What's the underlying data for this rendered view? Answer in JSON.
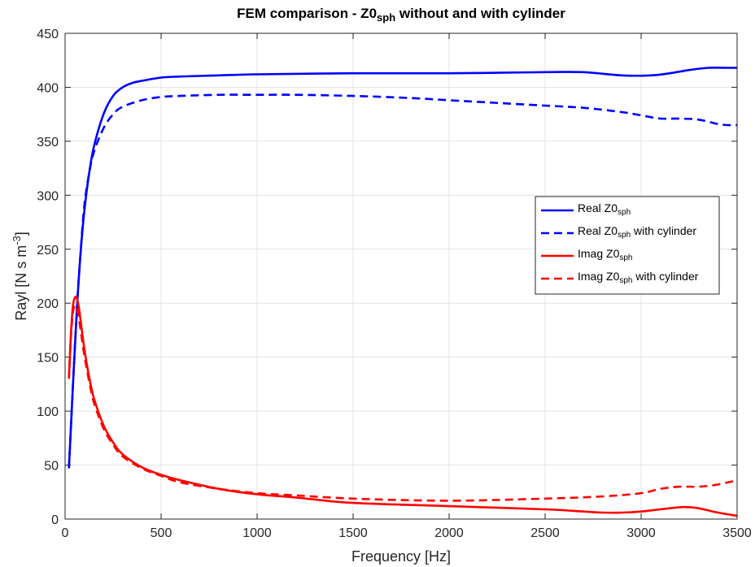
{
  "chart_data": {
    "type": "line",
    "title": {
      "prefix": "FEM comparison - Z0",
      "sub": "sph",
      "suffix": " without and with cylinder"
    },
    "xlabel": "Frequency [Hz]",
    "ylabel": {
      "prefix": "Rayl [N s m",
      "sup": "-3",
      "suffix": "]"
    },
    "xlim": [
      0,
      3500
    ],
    "ylim": [
      0,
      450
    ],
    "xticks": [
      0,
      500,
      1000,
      1500,
      2000,
      2500,
      3000,
      3500
    ],
    "yticks": [
      0,
      50,
      100,
      150,
      200,
      250,
      300,
      350,
      400,
      450
    ],
    "grid": true,
    "legend_position": "center-right",
    "series": [
      {
        "name": {
          "prefix": "Real Z0",
          "sub": "sph",
          "suffix": ""
        },
        "color": "#0000ff",
        "style": "solid",
        "x": [
          20,
          40,
          60,
          80,
          100,
          125,
          150,
          200,
          250,
          300,
          350,
          400,
          500,
          600,
          800,
          1000,
          1500,
          2000,
          2500,
          2700,
          2900,
          3050,
          3150,
          3250,
          3350,
          3450,
          3500
        ],
        "y": [
          47,
          120,
          190,
          245,
          285,
          320,
          345,
          375,
          392,
          400,
          404,
          406,
          409,
          410,
          411,
          412,
          413,
          413,
          414,
          414,
          411,
          411,
          413,
          416,
          418,
          418,
          418
        ]
      },
      {
        "name": {
          "prefix": "Real Z0",
          "sub": "sph",
          "suffix": " with cylinder"
        },
        "color": "#0000ff",
        "style": "dashed",
        "x": [
          20,
          40,
          60,
          80,
          100,
          125,
          150,
          200,
          250,
          300,
          400,
          500,
          600,
          800,
          1000,
          1200,
          1500,
          1800,
          2000,
          2200,
          2500,
          2700,
          2900,
          3000,
          3100,
          3200,
          3300,
          3400,
          3450,
          3500
        ],
        "y": [
          47,
          120,
          190,
          245,
          290,
          320,
          340,
          362,
          375,
          382,
          388,
          391,
          392,
          393,
          393,
          393,
          392,
          390,
          388,
          386,
          383,
          381,
          377,
          374,
          371,
          371,
          370,
          366,
          365,
          365
        ]
      },
      {
        "name": {
          "prefix": "Imag Z0",
          "sub": "sph",
          "suffix": ""
        },
        "color": "#ff0000",
        "style": "solid",
        "x": [
          20,
          30,
          40,
          50,
          60,
          70,
          80,
          100,
          125,
          150,
          200,
          250,
          300,
          400,
          500,
          600,
          800,
          1000,
          1200,
          1500,
          2000,
          2500,
          2700,
          2800,
          2900,
          3000,
          3100,
          3200,
          3250,
          3300,
          3400,
          3500
        ],
        "y": [
          130,
          170,
          196,
          205,
          205,
          198,
          185,
          158,
          132,
          112,
          87,
          71,
          60,
          48,
          41,
          36,
          28,
          23,
          20,
          15,
          12,
          9,
          7,
          6,
          6,
          7,
          9,
          11,
          11,
          10,
          6,
          3
        ]
      },
      {
        "name": {
          "prefix": "Imag Z0",
          "sub": "sph",
          "suffix": " with cylinder"
        },
        "color": "#ff0000",
        "style": "dashed",
        "x": [
          20,
          30,
          40,
          50,
          60,
          70,
          80,
          100,
          125,
          150,
          200,
          250,
          300,
          400,
          500,
          600,
          800,
          1000,
          1200,
          1500,
          2000,
          2500,
          2800,
          3000,
          3100,
          3200,
          3300,
          3400,
          3500
        ],
        "y": [
          130,
          168,
          190,
          198,
          195,
          188,
          176,
          152,
          128,
          108,
          84,
          69,
          58,
          47,
          40,
          34,
          28,
          24,
          22,
          19,
          17,
          19,
          21,
          24,
          28,
          30,
          30,
          32,
          36
        ]
      }
    ]
  }
}
